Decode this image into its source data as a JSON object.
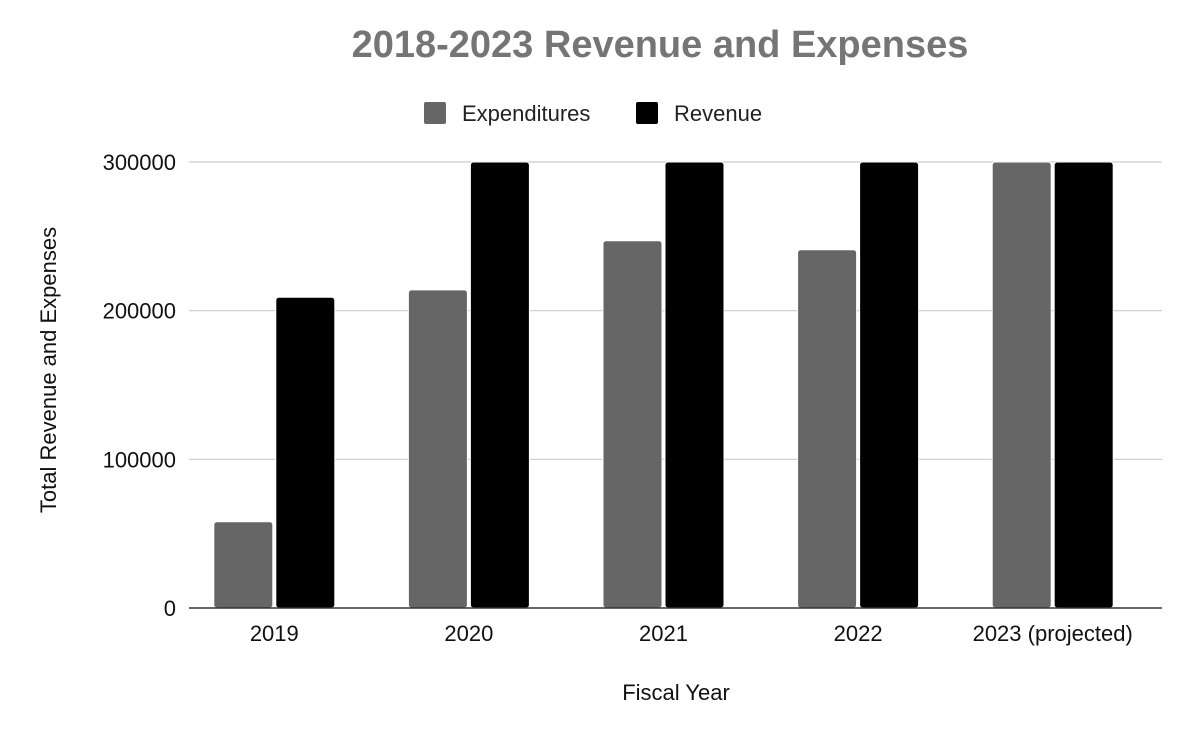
{
  "chart_data": {
    "type": "bar",
    "title": "2018-2023 Revenue and Expenses",
    "xlabel": "Fiscal Year",
    "ylabel": "Total Revenue and Expenses",
    "categories": [
      "2019",
      "2020",
      "2021",
      "2022",
      "2023 (projected)"
    ],
    "series": [
      {
        "name": "Expenditures",
        "color": "#666666",
        "values": [
          58000,
          214000,
          247000,
          241000,
          300000
        ]
      },
      {
        "name": "Revenue",
        "color": "#000000",
        "values": [
          209000,
          300000,
          300000,
          300000,
          300000
        ]
      }
    ],
    "ylim": [
      0,
      300000
    ],
    "yticks": [
      "0",
      "100000",
      "200000",
      "300000"
    ],
    "legend_position": "top",
    "grid": true
  }
}
